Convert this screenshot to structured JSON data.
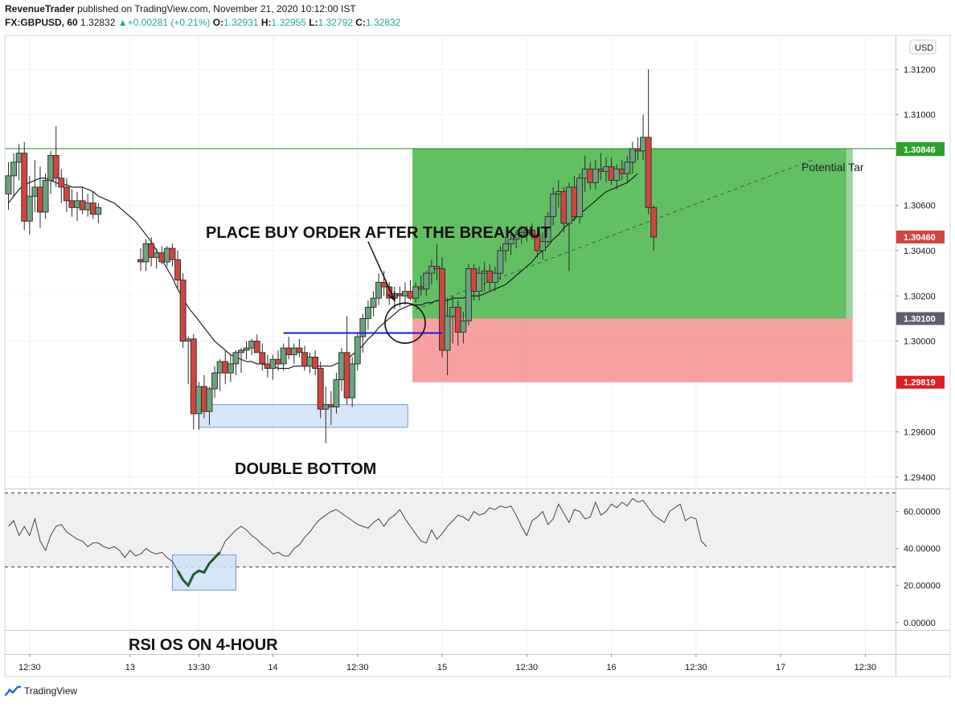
{
  "header": {
    "publisher": "RevenueTrader",
    "published_text": "published on TradingView.com, November 21, 2020 10:12:00 IST",
    "symbol": "FX:GBPUSD, 60",
    "last": "1.32832",
    "change": "+0.00281 (+0.21%)",
    "o_label": "O:",
    "o": "1.32931",
    "h_label": "H:",
    "h": "1.32955",
    "l_label": "L:",
    "l": "1.32792",
    "c_label": "C:",
    "c": "1.32832"
  },
  "footer": {
    "brand": "TradingView"
  },
  "colors": {
    "up": "#6aa37e",
    "down": "#d1453e",
    "profit": "#4cb74c",
    "loss": "#f58a8a",
    "breakout": "#1a1adc",
    "target_line": "#2a8a2a",
    "rsi_zone": "#ececec"
  },
  "chart_data": {
    "type": "candlestick",
    "currency": "USD",
    "price_axis": {
      "range": [
        1.2935,
        1.3135
      ],
      "ticks": [
        "1.31200",
        "1.31000",
        "1.30600",
        "1.30400",
        "1.30200",
        "1.30000",
        "1.29600",
        "1.29400"
      ],
      "tick_values": [
        1.312,
        1.31,
        1.306,
        1.304,
        1.302,
        1.3,
        1.296,
        1.294
      ]
    },
    "time_axis": {
      "labels": [
        "12:30",
        "13",
        "13:30",
        "14",
        "12:30",
        "15",
        "12:30",
        "16",
        "12:30",
        "17",
        "12:30"
      ],
      "positions": [
        4,
        23,
        36,
        50,
        66,
        82,
        98,
        114,
        130,
        146,
        162
      ]
    },
    "bar_count": 169,
    "candles": [
      [
        1.3065,
        1.3079,
        1.3058,
        1.3073
      ],
      [
        1.3073,
        1.3083,
        1.3064,
        1.3079
      ],
      [
        1.3079,
        1.3087,
        1.3071,
        1.3083
      ],
      [
        1.3083,
        1.3088,
        1.3049,
        1.3053
      ],
      [
        1.3053,
        1.3073,
        1.3047,
        1.3064
      ],
      [
        1.3064,
        1.308,
        1.3057,
        1.3068
      ],
      [
        1.3068,
        1.3077,
        1.305,
        1.3057
      ],
      [
        1.3057,
        1.3074,
        1.3054,
        1.3071
      ],
      [
        1.3071,
        1.3084,
        1.3065,
        1.3082
      ],
      [
        1.3082,
        1.3095,
        1.3068,
        1.3072
      ],
      [
        1.3072,
        1.3076,
        1.3061,
        1.3068
      ],
      [
        1.3068,
        1.3072,
        1.3057,
        1.3062
      ],
      [
        1.3062,
        1.3067,
        1.3055,
        1.3059
      ],
      [
        1.3059,
        1.3066,
        1.3053,
        1.3062
      ],
      [
        1.3062,
        1.3068,
        1.3056,
        1.3058
      ],
      [
        1.3058,
        1.3065,
        1.3055,
        1.3061
      ],
      [
        1.3061,
        1.3066,
        1.3054,
        1.3056
      ],
      [
        1.3056,
        1.3061,
        1.3052,
        1.3059
      ],
      null,
      null,
      null,
      null,
      null,
      null,
      null,
      [
        1.3036,
        1.3041,
        1.3031,
        1.3035
      ],
      [
        1.3035,
        1.3045,
        1.3031,
        1.3043
      ],
      [
        1.3043,
        1.3046,
        1.3033,
        1.3037
      ],
      [
        1.3037,
        1.3041,
        1.3032,
        1.3039
      ],
      [
        1.3039,
        1.3042,
        1.3034,
        1.3035
      ],
      [
        1.3035,
        1.3042,
        1.3033,
        1.3041
      ],
      [
        1.3041,
        1.3043,
        1.3033,
        1.3036
      ],
      [
        1.3036,
        1.304,
        1.3023,
        1.3027
      ],
      [
        1.3027,
        1.303,
        1.2997,
        1.3
      ],
      [
        1.3,
        1.3002,
        1.2981,
        1.3001
      ],
      [
        1.3001,
        1.3003,
        1.2961,
        1.2968
      ],
      [
        1.2968,
        1.2982,
        1.2961,
        1.298
      ],
      [
        1.298,
        1.2985,
        1.2966,
        1.2969
      ],
      [
        1.2969,
        1.298,
        1.2963,
        1.2979
      ],
      [
        1.2979,
        1.2989,
        1.2975,
        1.2986
      ],
      [
        1.2986,
        1.2992,
        1.2978,
        1.2991
      ],
      [
        1.2991,
        1.2996,
        1.2981,
        1.2986
      ],
      [
        1.2986,
        1.2994,
        1.2982,
        1.299
      ],
      [
        1.299,
        1.2996,
        1.2985,
        1.2995
      ],
      [
        1.2995,
        1.2997,
        1.2986,
        1.2996
      ],
      [
        1.2996,
        1.3,
        1.2992,
        1.2997
      ],
      [
        1.2997,
        1.3001,
        1.2994,
        1.3
      ],
      [
        1.3,
        1.3003,
        1.2996,
        1.2995
      ],
      [
        1.2995,
        1.2999,
        1.2987,
        1.299
      ],
      [
        1.299,
        1.2994,
        1.2984,
        1.2988
      ],
      [
        1.2988,
        1.2994,
        1.2983,
        1.2992
      ],
      [
        1.2992,
        1.2996,
        1.2987,
        1.299
      ],
      [
        1.299,
        1.2999,
        1.2987,
        1.2997
      ],
      [
        1.2997,
        1.3002,
        1.2992,
        1.2994
      ],
      [
        1.2994,
        1.2999,
        1.299,
        1.2997
      ],
      [
        1.2997,
        1.3001,
        1.2993,
        1.2995
      ],
      [
        1.2995,
        1.2998,
        1.2987,
        1.2989
      ],
      [
        1.2989,
        1.2995,
        1.2986,
        1.2993
      ],
      [
        1.2993,
        1.2996,
        1.2985,
        1.2988
      ],
      [
        1.2988,
        1.2991,
        1.2966,
        1.297
      ],
      [
        1.297,
        1.298,
        1.2955,
        1.2972
      ],
      [
        1.2972,
        1.2978,
        1.2963,
        1.2971
      ],
      [
        1.2971,
        1.2986,
        1.2968,
        1.2983
      ],
      [
        1.2983,
        1.2997,
        1.2978,
        1.2995
      ],
      [
        1.2995,
        1.3011,
        1.2972,
        1.2975
      ],
      [
        1.2975,
        1.2993,
        1.2971,
        1.299
      ],
      [
        1.299,
        1.3004,
        1.2987,
        1.3002
      ],
      [
        1.3002,
        1.3012,
        1.2995,
        1.301
      ],
      [
        1.301,
        1.3018,
        1.3005,
        1.3015
      ],
      [
        1.3015,
        1.3022,
        1.3011,
        1.3019
      ],
      [
        1.3019,
        1.303,
        1.3016,
        1.3026
      ],
      [
        1.3026,
        1.3031,
        1.302,
        1.3024
      ],
      [
        1.3024,
        1.3026,
        1.3016,
        1.3019
      ],
      [
        1.3019,
        1.3024,
        1.3014,
        1.3021
      ],
      [
        1.3021,
        1.3024,
        1.3015,
        1.302
      ],
      [
        1.302,
        1.3026,
        1.3016,
        1.3022
      ],
      [
        1.3022,
        1.3027,
        1.3018,
        1.3019
      ],
      [
        1.3019,
        1.3026,
        1.3017,
        1.3024
      ],
      [
        1.3024,
        1.3029,
        1.302,
        1.3023
      ],
      [
        1.3023,
        1.3031,
        1.302,
        1.303
      ],
      [
        1.303,
        1.3036,
        1.3025,
        1.3033
      ],
      [
        1.3033,
        1.3043,
        1.3027,
        1.3032
      ],
      [
        1.3032,
        1.3037,
        1.2993,
        1.2996
      ],
      [
        1.2996,
        1.3019,
        1.2985,
        1.3011
      ],
      [
        1.3011,
        1.302,
        1.2999,
        1.3015
      ],
      [
        1.3015,
        1.3018,
        1.2998,
        1.3004
      ],
      [
        1.3004,
        1.3013,
        1.2999,
        1.3009
      ],
      [
        1.3009,
        1.3034,
        1.3007,
        1.3032
      ],
      [
        1.3032,
        1.3034,
        1.3018,
        1.3022
      ],
      [
        1.3022,
        1.3033,
        1.3018,
        1.303
      ],
      [
        1.303,
        1.3035,
        1.3022,
        1.3031
      ],
      [
        1.3031,
        1.3034,
        1.3022,
        1.3026
      ],
      [
        1.3026,
        1.3033,
        1.3022,
        1.303
      ],
      [
        1.303,
        1.3042,
        1.3027,
        1.304
      ],
      [
        1.304,
        1.3046,
        1.3035,
        1.3043
      ],
      [
        1.3043,
        1.3047,
        1.3038,
        1.3045
      ],
      [
        1.3045,
        1.3049,
        1.3041,
        1.3047
      ],
      [
        1.3047,
        1.3051,
        1.3043,
        1.3048
      ],
      [
        1.3048,
        1.3051,
        1.3044,
        1.3049
      ],
      [
        1.3049,
        1.3052,
        1.3045,
        1.3047
      ],
      [
        1.3047,
        1.305,
        1.3037,
        1.304
      ],
      [
        1.304,
        1.3048,
        1.3036,
        1.3044
      ],
      [
        1.3044,
        1.3057,
        1.3043,
        1.3055
      ],
      [
        1.3055,
        1.3068,
        1.3051,
        1.3065
      ],
      [
        1.3065,
        1.3071,
        1.3059,
        1.3066
      ],
      [
        1.3066,
        1.3068,
        1.3048,
        1.3052
      ],
      [
        1.3052,
        1.307,
        1.3031,
        1.3068
      ],
      [
        1.3068,
        1.3073,
        1.3053,
        1.3055
      ],
      [
        1.3055,
        1.3074,
        1.3052,
        1.3072
      ],
      [
        1.3072,
        1.3082,
        1.3066,
        1.3076
      ],
      [
        1.3076,
        1.3079,
        1.3067,
        1.307
      ],
      [
        1.307,
        1.308,
        1.3067,
        1.3076
      ],
      [
        1.3076,
        1.3083,
        1.3071,
        1.3075
      ],
      [
        1.3075,
        1.3081,
        1.307,
        1.3077
      ],
      [
        1.3077,
        1.3081,
        1.3069,
        1.3071
      ],
      [
        1.3071,
        1.3078,
        1.3067,
        1.3076
      ],
      [
        1.3076,
        1.308,
        1.3071,
        1.3074
      ],
      [
        1.3074,
        1.3082,
        1.307,
        1.3079
      ],
      [
        1.3079,
        1.3088,
        1.3074,
        1.3085
      ],
      [
        1.3085,
        1.309,
        1.308,
        1.3084
      ],
      [
        1.3084,
        1.31,
        1.308,
        1.309
      ],
      [
        1.309,
        1.312,
        1.3056,
        1.3059
      ],
      [
        1.3059,
        1.306,
        1.304,
        1.3046
      ],
      null,
      null,
      null,
      null,
      null,
      null,
      null,
      null,
      null,
      null,
      null,
      null,
      null,
      null,
      null,
      null,
      null,
      null,
      null,
      null,
      null,
      null,
      null,
      null,
      null,
      null,
      null,
      null,
      null,
      null,
      null,
      null,
      null,
      null,
      null,
      null,
      null,
      null,
      null,
      null,
      null,
      null,
      null,
      null,
      null,
      null,
      null
    ],
    "ma_values": [
      1.3061,
      1.3064,
      1.3067,
      1.3069,
      1.307,
      1.3071,
      1.3072,
      1.3072,
      1.3071,
      1.307,
      1.3069,
      1.3069,
      1.3068,
      1.3068,
      1.3068,
      1.3067,
      1.3066,
      1.3064,
      1.3063,
      1.3062,
      1.3061,
      1.3059,
      1.3057,
      1.3055,
      1.3053,
      1.305,
      1.3047,
      1.3044,
      1.304,
      1.3036,
      1.3032,
      1.3028,
      1.3023,
      1.3019,
      1.3015,
      1.3012,
      1.3009,
      1.3006,
      1.3003,
      1.3,
      1.2998,
      1.2996,
      1.2994,
      1.2993,
      1.2992,
      1.2991,
      1.2991,
      1.299,
      1.299,
      1.2989,
      1.2989,
      1.2988,
      1.2988,
      1.2988,
      1.2989,
      1.2989,
      1.2989,
      1.2989,
      1.2989,
      1.2989,
      1.2989,
      1.2989,
      1.299,
      1.2991,
      1.2992,
      1.2994,
      1.2996,
      1.2998,
      1.3001,
      1.3003,
      1.3006,
      1.3008,
      1.301,
      1.3012,
      1.3014,
      1.3015,
      1.3016,
      1.3016,
      1.3016,
      1.3017,
      1.3017,
      1.3018,
      1.3018,
      1.3018,
      1.3019,
      1.3019,
      1.3019,
      1.302,
      1.302,
      1.302,
      1.3021,
      1.3022,
      1.3023,
      1.3024,
      1.3025,
      1.3027,
      1.3029,
      1.3031,
      1.3033,
      1.3035,
      1.3038,
      1.304,
      1.3042,
      1.3045,
      1.3047,
      1.305,
      1.3052,
      1.3054,
      1.3056,
      1.3058,
      1.306,
      1.3062,
      1.3064,
      1.3066,
      1.3067,
      1.3068,
      1.3069,
      1.307,
      1.3072,
      1.3074
    ],
    "price_labels": [
      {
        "text": "1.30850",
        "value": 1.3085,
        "bg": "#2ca02c"
      },
      {
        "text": "1.30846",
        "value": 1.30846,
        "bg": "#2ca02c"
      },
      {
        "text": "1.30460",
        "value": 1.3046,
        "bg": "#d1453e"
      },
      {
        "text": "1.30100",
        "value": 1.301,
        "bg": "#5d606b"
      },
      {
        "text": "1.29819",
        "value": 1.29819,
        "bg": "#e51c1c"
      }
    ],
    "position": {
      "entry": 1.301,
      "target": 1.3085,
      "stop": 1.29819,
      "start_bar": 77,
      "end_bar": 159,
      "target_line_start": 0
    },
    "breakout_line": {
      "value": 1.30036,
      "from_bar": 52,
      "to_bar": 82
    },
    "double_bottom_box": {
      "from_bar": 36,
      "to_bar": 75.5,
      "low": 1.2962,
      "high": 1.2972
    },
    "trend_line": {
      "from": [
        77,
        1.3014
      ],
      "to": [
        152,
        1.308
      ]
    },
    "arrow": {
      "from": [
        68,
        1.3044
      ],
      "to": [
        73,
        1.3018
      ]
    },
    "circle": {
      "bar": 75,
      "value": 1.3008
    },
    "annotations": {
      "breakout": "PLACE BUY ORDER AFTER THE BREAKOUT",
      "double_bottom": "DOUBLE BOTTOM",
      "rsi": "RSI OS ON 4-HOUR",
      "target": "Potential Target"
    },
    "rsi": {
      "range": [
        -4,
        72
      ],
      "ticks": [
        "60.00000",
        "40.00000",
        "20.00000",
        "0.00000"
      ],
      "tick_values": [
        60,
        40,
        20,
        0
      ],
      "upper": 70,
      "lower": 30,
      "values": [
        52,
        55,
        47,
        52,
        47,
        56,
        44,
        39,
        47,
        52,
        53,
        49,
        47,
        45,
        44,
        41,
        43,
        43,
        41,
        40,
        41,
        39,
        35,
        39,
        36,
        37,
        40,
        38,
        37,
        38,
        35,
        33,
        28,
        23,
        20,
        26,
        28,
        27,
        32,
        35,
        38,
        44,
        47,
        50,
        52,
        50,
        47,
        45,
        42,
        40,
        37,
        38,
        36,
        36,
        40,
        42,
        46,
        49,
        53,
        56,
        58,
        60,
        61,
        59,
        57,
        55,
        53,
        52,
        51,
        54,
        56,
        52,
        56,
        58,
        61,
        56,
        52,
        48,
        44,
        43,
        50,
        45,
        48,
        52,
        55,
        58,
        57,
        55,
        60,
        58,
        59,
        62,
        61,
        63,
        62,
        63,
        58,
        52,
        47,
        55,
        57,
        60,
        53,
        56,
        64,
        59,
        54,
        61,
        60,
        56,
        57,
        65,
        58,
        60,
        64,
        62,
        65,
        63,
        67,
        65,
        66,
        62,
        58,
        56,
        54,
        60,
        62,
        64,
        55,
        57,
        56,
        44,
        41
      ],
      "highlight_from": 32,
      "highlight_to": 40,
      "box": {
        "from_bar": 31,
        "to_bar": 43,
        "low": 17.5,
        "high": 36.5
      }
    }
  }
}
